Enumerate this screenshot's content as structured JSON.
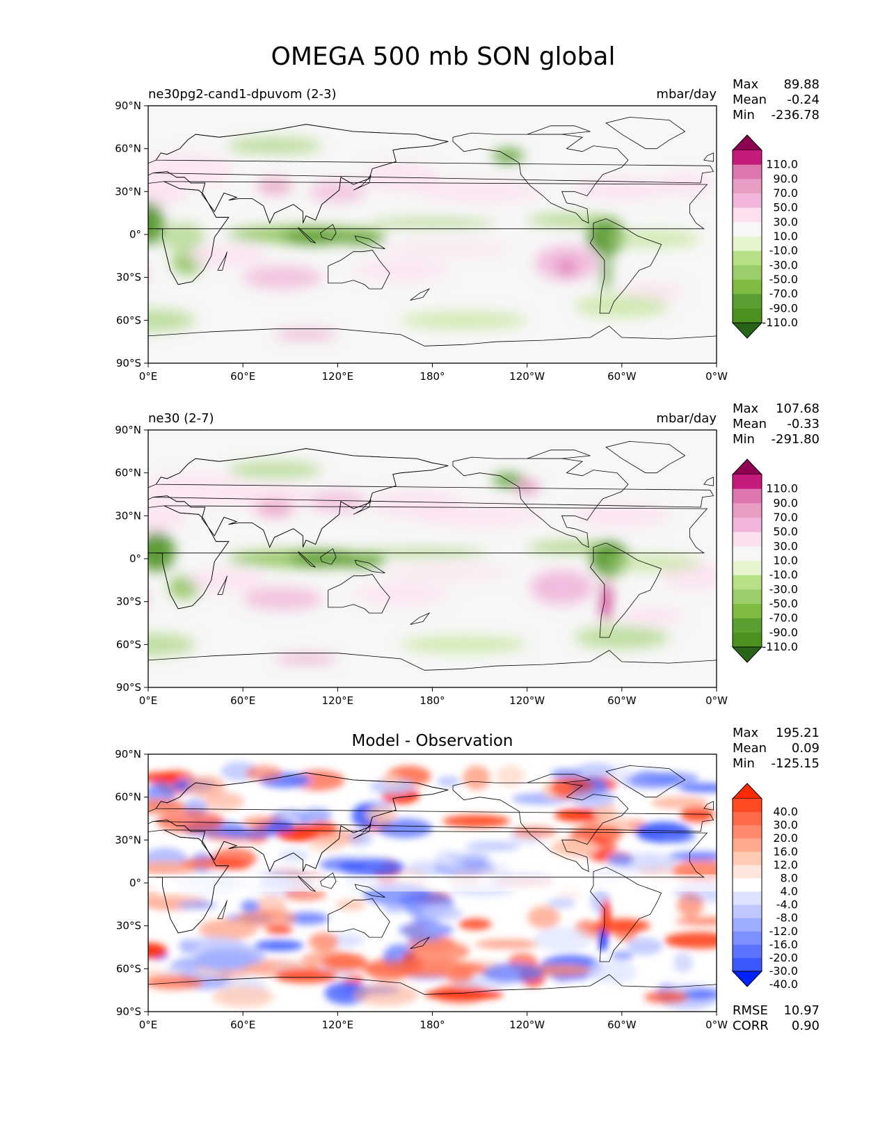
{
  "figure_title": "OMEGA 500 mb SON global",
  "chart_data": [
    {
      "type": "heatmap",
      "title": "ne30pg2-cand1-dpuvom (2-3)",
      "units": "mbar/day",
      "stats": [
        {
          "label": "Max",
          "value": "89.88"
        },
        {
          "label": "Mean",
          "value": "-0.24"
        },
        {
          "label": "Min",
          "value": "-236.78"
        }
      ],
      "x_ticks": [
        "0°E",
        "60°E",
        "120°E",
        "180°",
        "120°W",
        "60°W",
        "0°W"
      ],
      "y_ticks": [
        "90°N",
        "60°N",
        "30°N",
        "0°",
        "30°S",
        "60°S",
        "90°S"
      ],
      "xlim": [
        0,
        360
      ],
      "ylim": [
        -90,
        90
      ],
      "colorbar": {
        "labels": [
          "110.0",
          "90.0",
          "70.0",
          "50.0",
          "30.0",
          "10.0",
          "-10.0",
          "-30.0",
          "-50.0",
          "-70.0",
          "-90.0",
          "-110.0"
        ],
        "colors": [
          "#8e0152",
          "#c51b7d",
          "#de77ae",
          "#e89dc4",
          "#f1b6da",
          "#fde0ef",
          "#f7f7f7",
          "#e6f5d0",
          "#b8e186",
          "#9bce6a",
          "#7fbc41",
          "#5a9f32",
          "#4d9221",
          "#276419"
        ]
      }
    },
    {
      "type": "heatmap",
      "title": "ne30 (2-7)",
      "units": "mbar/day",
      "stats": [
        {
          "label": "Max",
          "value": "107.68"
        },
        {
          "label": "Mean",
          "value": "-0.33"
        },
        {
          "label": "Min",
          "value": "-291.80"
        }
      ],
      "x_ticks": [
        "0°E",
        "60°E",
        "120°E",
        "180°",
        "120°W",
        "60°W",
        "0°W"
      ],
      "y_ticks": [
        "90°N",
        "60°N",
        "30°N",
        "0°",
        "30°S",
        "60°S",
        "90°S"
      ],
      "xlim": [
        0,
        360
      ],
      "ylim": [
        -90,
        90
      ],
      "colorbar": {
        "labels": [
          "110.0",
          "90.0",
          "70.0",
          "50.0",
          "30.0",
          "10.0",
          "-10.0",
          "-30.0",
          "-50.0",
          "-70.0",
          "-90.0",
          "-110.0"
        ],
        "colors": [
          "#8e0152",
          "#c51b7d",
          "#de77ae",
          "#e89dc4",
          "#f1b6da",
          "#fde0ef",
          "#f7f7f7",
          "#e6f5d0",
          "#b8e186",
          "#9bce6a",
          "#7fbc41",
          "#5a9f32",
          "#4d9221",
          "#276419"
        ]
      }
    },
    {
      "type": "heatmap",
      "title": "Model - Observation",
      "units": "",
      "stats": [
        {
          "label": "Max",
          "value": "195.21"
        },
        {
          "label": "Mean",
          "value": "0.09"
        },
        {
          "label": "Min",
          "value": "-125.15"
        }
      ],
      "metrics": [
        {
          "label": "RMSE",
          "value": "10.97"
        },
        {
          "label": "CORR",
          "value": "0.90"
        }
      ],
      "x_ticks": [
        "0°E",
        "60°E",
        "120°E",
        "180°",
        "120°W",
        "60°W",
        "0°W"
      ],
      "y_ticks": [
        "90°N",
        "60°N",
        "30°N",
        "0°",
        "30°S",
        "60°S",
        "90°S"
      ],
      "xlim": [
        0,
        360
      ],
      "ylim": [
        -90,
        90
      ],
      "colorbar": {
        "labels": [
          "40.0",
          "30.0",
          "20.0",
          "16.0",
          "12.0",
          "8.0",
          "4.0",
          "-4.0",
          "-8.0",
          "-12.0",
          "-16.0",
          "-20.0",
          "-30.0",
          "-40.0"
        ],
        "colors": [
          "#ff2a00",
          "#ff4a24",
          "#ff6a48",
          "#ff8a6c",
          "#ffaa90",
          "#ffcab4",
          "#ffe6dc",
          "#ffffff",
          "#dde3ff",
          "#bfc8ff",
          "#9eacff",
          "#7d90ff",
          "#5c74ff",
          "#3b58ff",
          "#0022ff"
        ]
      }
    }
  ]
}
